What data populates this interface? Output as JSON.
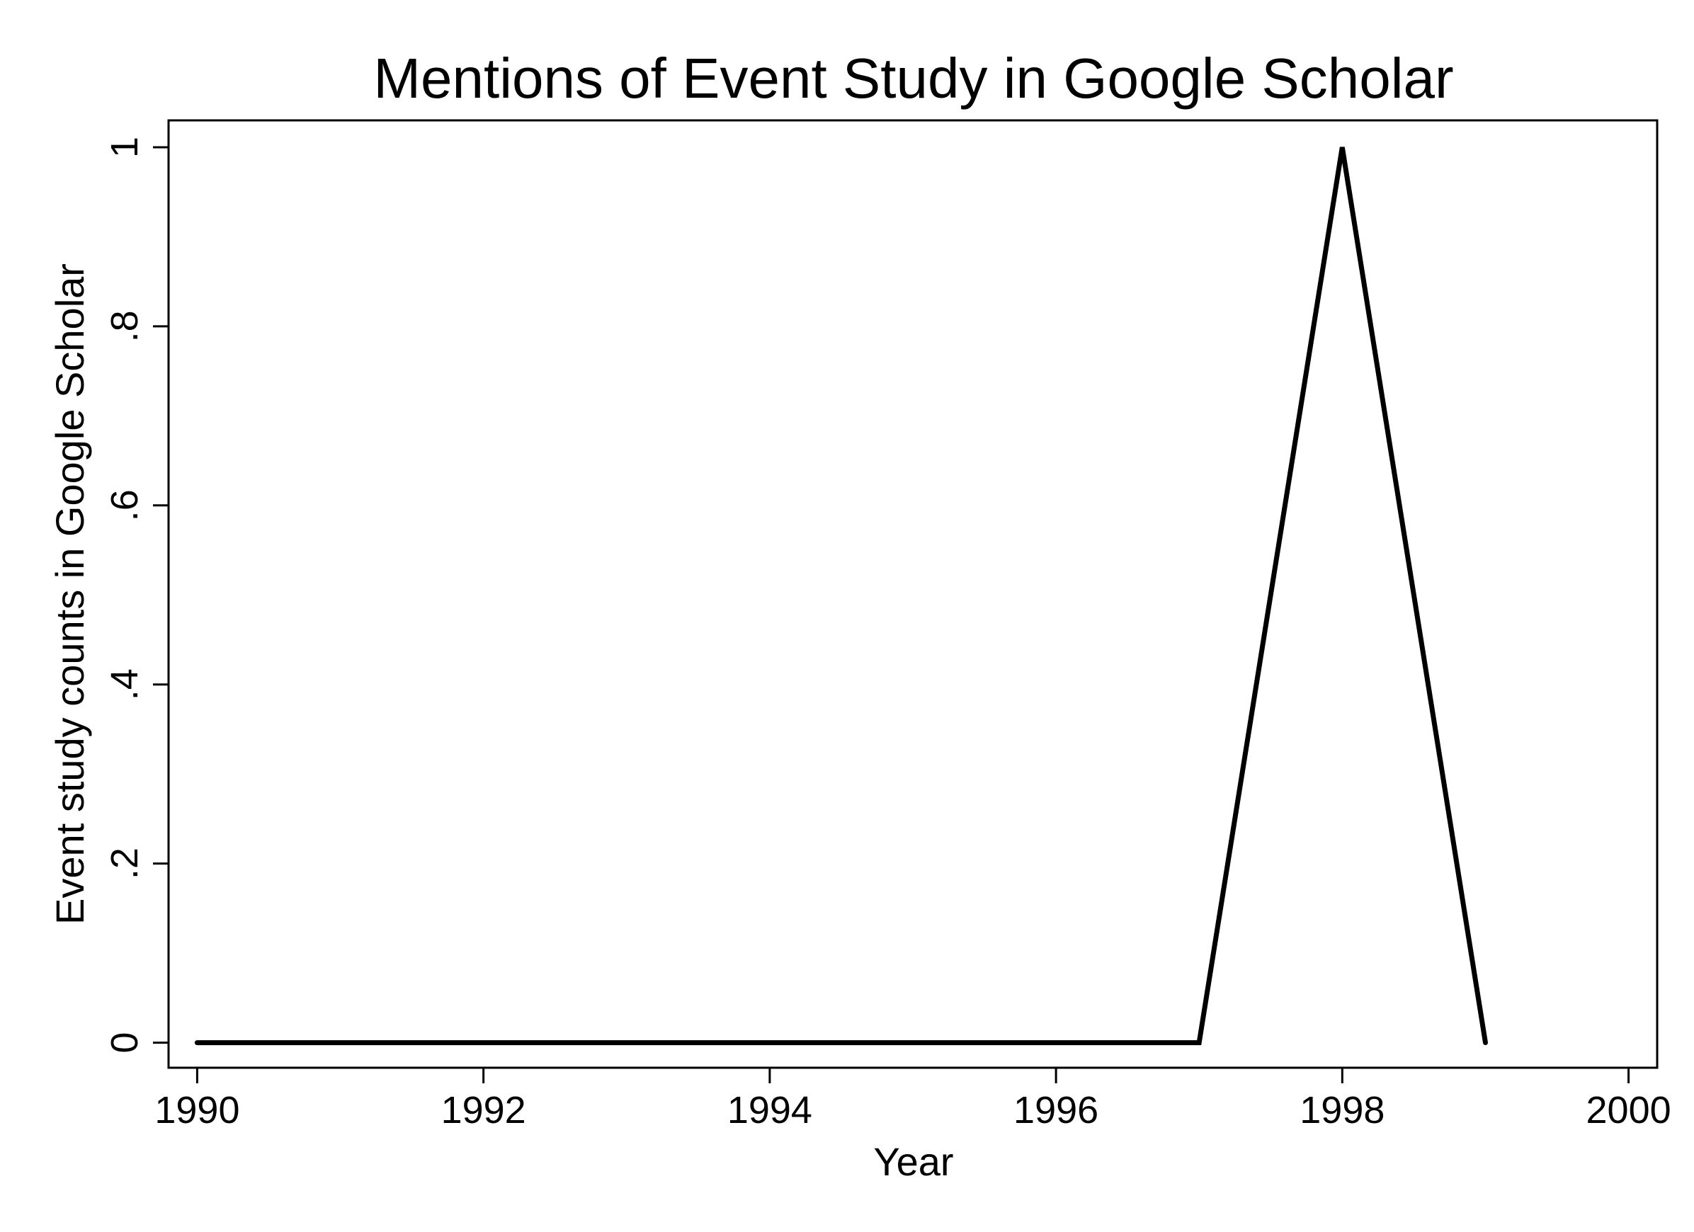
{
  "chart_data": {
    "type": "line",
    "title": "Mentions of Event Study in Google Scholar",
    "xlabel": "Year",
    "ylabel": "Event study counts in Google Scholar",
    "xlim": [
      1989.8,
      2000.2
    ],
    "ylim": [
      -0.028,
      1.03
    ],
    "x_ticks": [
      1990,
      1992,
      1994,
      1996,
      1998,
      2000
    ],
    "x_tick_labels": [
      "1990",
      "1992",
      "1994",
      "1996",
      "1998",
      "2000"
    ],
    "y_ticks": [
      0,
      0.2,
      0.4,
      0.6,
      0.8,
      1
    ],
    "y_tick_labels": [
      "0",
      ".2",
      ".4",
      ".6",
      ".8",
      "1"
    ],
    "grid": false,
    "legend": "none",
    "series": [
      {
        "color": "#000000",
        "x": [
          1990,
          1991,
          1992,
          1993,
          1994,
          1995,
          1996,
          1997,
          1998,
          1999
        ],
        "y": [
          0,
          0,
          0,
          0,
          0,
          0,
          0,
          0,
          1,
          0
        ]
      }
    ]
  }
}
